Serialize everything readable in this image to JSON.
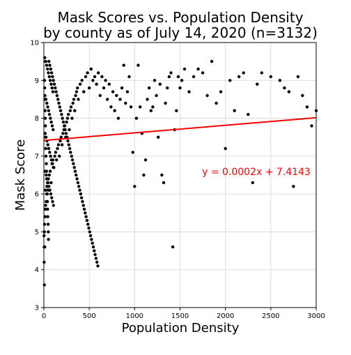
{
  "colors": {
    "points": "#000000",
    "fit_line": "#ff0000",
    "annotation": "#ff0000",
    "grid": "#d4d4d4",
    "background": "#ffffff"
  },
  "chart_data": {
    "type": "scatter",
    "title_line1": "Mask Scores vs. Population Density",
    "title_line2": "by county as of July 14, 2020 (n=3132)",
    "xlabel": "Population Density",
    "ylabel": "Mask Score",
    "xlim": [
      0,
      3000
    ],
    "ylim": [
      3,
      10
    ],
    "xticks": [
      "0",
      "500",
      "1000",
      "1500",
      "2000",
      "2500",
      "3000"
    ],
    "yticks": [
      "3",
      "4",
      "5",
      "6",
      "7",
      "8",
      "9",
      "10"
    ],
    "grid": true,
    "fit": {
      "slope": 0.0002,
      "intercept": 7.4143
    },
    "annotation": "y = 0.0002x + 7.4143",
    "series": [
      {
        "points": [
          [
            5,
            3.6
          ],
          [
            3,
            4.2
          ],
          [
            4,
            4.6
          ],
          [
            10,
            4.6
          ],
          [
            2,
            4.9
          ],
          [
            6,
            5.0
          ],
          [
            8,
            5.2
          ],
          [
            12,
            5.4
          ],
          [
            15,
            5.6
          ],
          [
            20,
            5.7
          ],
          [
            25,
            5.8
          ],
          [
            30,
            6.0
          ],
          [
            18,
            6.1
          ],
          [
            35,
            6.2
          ],
          [
            40,
            6.3
          ],
          [
            45,
            6.1
          ],
          [
            50,
            6.4
          ],
          [
            60,
            6.5
          ],
          [
            70,
            6.6
          ],
          [
            80,
            6.3
          ],
          [
            90,
            6.8
          ],
          [
            100,
            6.9
          ],
          [
            110,
            6.7
          ],
          [
            120,
            7.0
          ],
          [
            130,
            7.1
          ],
          [
            140,
            6.9
          ],
          [
            150,
            7.2
          ],
          [
            160,
            7.3
          ],
          [
            170,
            7.0
          ],
          [
            180,
            7.4
          ],
          [
            190,
            7.5
          ],
          [
            200,
            7.3
          ],
          [
            210,
            7.6
          ],
          [
            220,
            7.7
          ],
          [
            230,
            7.8
          ],
          [
            240,
            7.5
          ],
          [
            250,
            7.9
          ],
          [
            260,
            8.0
          ],
          [
            270,
            8.1
          ],
          [
            280,
            7.7
          ],
          [
            290,
            8.2
          ],
          [
            300,
            8.3
          ],
          [
            310,
            8.0
          ],
          [
            320,
            8.4
          ],
          [
            330,
            8.5
          ],
          [
            340,
            8.2
          ],
          [
            350,
            8.6
          ],
          [
            360,
            8.7
          ],
          [
            370,
            8.8
          ],
          [
            380,
            8.5
          ],
          [
            400,
            8.9
          ],
          [
            420,
            9.0
          ],
          [
            440,
            8.7
          ],
          [
            460,
            9.1
          ],
          [
            480,
            9.2
          ],
          [
            500,
            8.8
          ],
          [
            520,
            9.3
          ],
          [
            540,
            9.0
          ],
          [
            560,
            9.1
          ],
          [
            580,
            8.9
          ],
          [
            600,
            9.2
          ],
          [
            620,
            8.6
          ],
          [
            640,
            9.1
          ],
          [
            660,
            8.8
          ],
          [
            680,
            9.0
          ],
          [
            700,
            8.5
          ],
          [
            720,
            8.9
          ],
          [
            740,
            8.3
          ],
          [
            760,
            8.7
          ],
          [
            780,
            8.2
          ],
          [
            800,
            8.6
          ],
          [
            820,
            8.0
          ],
          [
            840,
            8.5
          ],
          [
            860,
            8.8
          ],
          [
            880,
            9.4
          ],
          [
            900,
            8.4
          ],
          [
            920,
            8.7
          ],
          [
            940,
            9.1
          ],
          [
            960,
            8.3
          ],
          [
            980,
            7.1
          ],
          [
            1000,
            6.2
          ],
          [
            1020,
            8.0
          ],
          [
            1040,
            9.4
          ],
          [
            1060,
            8.3
          ],
          [
            1080,
            7.6
          ],
          [
            1100,
            6.5
          ],
          [
            1120,
            6.9
          ],
          [
            1140,
            8.5
          ],
          [
            1160,
            8.8
          ],
          [
            1180,
            8.2
          ],
          [
            1200,
            8.3
          ],
          [
            1220,
            9.0
          ],
          [
            1240,
            8.6
          ],
          [
            1260,
            7.5
          ],
          [
            1280,
            8.9
          ],
          [
            1300,
            6.5
          ],
          [
            1320,
            6.3
          ],
          [
            1340,
            8.4
          ],
          [
            1360,
            8.8
          ],
          [
            1380,
            9.1
          ],
          [
            1400,
            9.2
          ],
          [
            1420,
            4.6
          ],
          [
            1440,
            7.7
          ],
          [
            1460,
            8.2
          ],
          [
            1480,
            9.1
          ],
          [
            1500,
            8.8
          ],
          [
            1520,
            9.0
          ],
          [
            1550,
            9.3
          ],
          [
            1600,
            8.7
          ],
          [
            1650,
            9.1
          ],
          [
            1700,
            9.3
          ],
          [
            1750,
            9.2
          ],
          [
            1800,
            8.6
          ],
          [
            1850,
            9.5
          ],
          [
            1900,
            8.4
          ],
          [
            1950,
            8.7
          ],
          [
            2000,
            7.2
          ],
          [
            2050,
            9.0
          ],
          [
            2100,
            8.2
          ],
          [
            2150,
            9.1
          ],
          [
            2200,
            9.2
          ],
          [
            2250,
            8.1
          ],
          [
            2300,
            6.3
          ],
          [
            2350,
            8.9
          ],
          [
            2400,
            9.2
          ],
          [
            2500,
            9.1
          ],
          [
            2600,
            9.0
          ],
          [
            2650,
            8.8
          ],
          [
            2700,
            8.7
          ],
          [
            2750,
            6.2
          ],
          [
            2800,
            9.1
          ],
          [
            2850,
            8.6
          ],
          [
            2900,
            8.3
          ],
          [
            2950,
            7.8
          ],
          [
            3000,
            8.2
          ],
          [
            55,
            9.5
          ],
          [
            65,
            9.4
          ],
          [
            75,
            9.3
          ],
          [
            85,
            9.2
          ],
          [
            95,
            9.1
          ],
          [
            105,
            9.0
          ],
          [
            115,
            8.9
          ],
          [
            125,
            8.8
          ],
          [
            135,
            8.7
          ],
          [
            145,
            8.6
          ],
          [
            155,
            8.5
          ],
          [
            165,
            8.4
          ],
          [
            175,
            8.3
          ],
          [
            185,
            8.2
          ],
          [
            195,
            8.1
          ],
          [
            205,
            8.0
          ],
          [
            215,
            7.9
          ],
          [
            225,
            7.8
          ],
          [
            235,
            7.7
          ],
          [
            245,
            7.6
          ],
          [
            255,
            7.5
          ],
          [
            265,
            7.4
          ],
          [
            275,
            7.3
          ],
          [
            285,
            7.2
          ],
          [
            295,
            7.1
          ],
          [
            305,
            7.0
          ],
          [
            315,
            6.9
          ],
          [
            325,
            6.8
          ],
          [
            335,
            6.7
          ],
          [
            345,
            6.6
          ],
          [
            355,
            6.5
          ],
          [
            365,
            6.4
          ],
          [
            375,
            6.3
          ],
          [
            385,
            6.2
          ],
          [
            395,
            6.1
          ],
          [
            405,
            6.0
          ],
          [
            415,
            5.9
          ],
          [
            425,
            5.8
          ],
          [
            435,
            5.7
          ],
          [
            445,
            5.6
          ],
          [
            455,
            5.5
          ],
          [
            465,
            5.4
          ],
          [
            475,
            5.3
          ],
          [
            485,
            5.2
          ],
          [
            495,
            5.1
          ],
          [
            505,
            5.0
          ],
          [
            515,
            4.9
          ],
          [
            525,
            4.8
          ],
          [
            535,
            4.7
          ],
          [
            545,
            4.6
          ],
          [
            555,
            4.5
          ],
          [
            565,
            4.4
          ],
          [
            575,
            4.3
          ],
          [
            585,
            4.2
          ],
          [
            595,
            4.1
          ],
          [
            10,
            9.6
          ],
          [
            20,
            9.5
          ],
          [
            30,
            9.4
          ],
          [
            40,
            9.3
          ],
          [
            50,
            9.2
          ],
          [
            60,
            9.1
          ],
          [
            70,
            9.0
          ],
          [
            80,
            8.9
          ],
          [
            90,
            8.8
          ],
          [
            100,
            8.7
          ],
          [
            12,
            8.6
          ],
          [
            22,
            8.5
          ],
          [
            32,
            8.4
          ],
          [
            42,
            8.3
          ],
          [
            52,
            8.2
          ],
          [
            62,
            8.1
          ],
          [
            72,
            8.0
          ],
          [
            82,
            7.9
          ],
          [
            92,
            7.8
          ],
          [
            102,
            7.7
          ],
          [
            14,
            7.6
          ],
          [
            24,
            7.5
          ],
          [
            34,
            7.4
          ],
          [
            44,
            7.3
          ],
          [
            54,
            7.2
          ],
          [
            64,
            7.1
          ],
          [
            74,
            7.0
          ],
          [
            84,
            6.9
          ],
          [
            94,
            6.8
          ],
          [
            104,
            6.7
          ],
          [
            16,
            6.6
          ],
          [
            26,
            6.5
          ],
          [
            36,
            6.4
          ],
          [
            46,
            6.3
          ],
          [
            56,
            6.2
          ],
          [
            66,
            6.1
          ],
          [
            76,
            6.0
          ],
          [
            86,
            5.9
          ],
          [
            96,
            5.8
          ],
          [
            106,
            5.7
          ],
          [
            7,
            9.0
          ],
          [
            9,
            8.8
          ],
          [
            11,
            8.5
          ],
          [
            13,
            8.2
          ],
          [
            15,
            8.0
          ],
          [
            17,
            7.8
          ],
          [
            19,
            7.5
          ],
          [
            21,
            7.2
          ],
          [
            23,
            7.0
          ],
          [
            27,
            6.8
          ],
          [
            29,
            6.6
          ],
          [
            31,
            6.4
          ],
          [
            33,
            6.2
          ],
          [
            37,
            6.0
          ],
          [
            39,
            5.8
          ],
          [
            41,
            5.6
          ],
          [
            43,
            5.4
          ],
          [
            47,
            5.2
          ],
          [
            49,
            5.0
          ],
          [
            51,
            4.8
          ]
        ]
      }
    ]
  }
}
